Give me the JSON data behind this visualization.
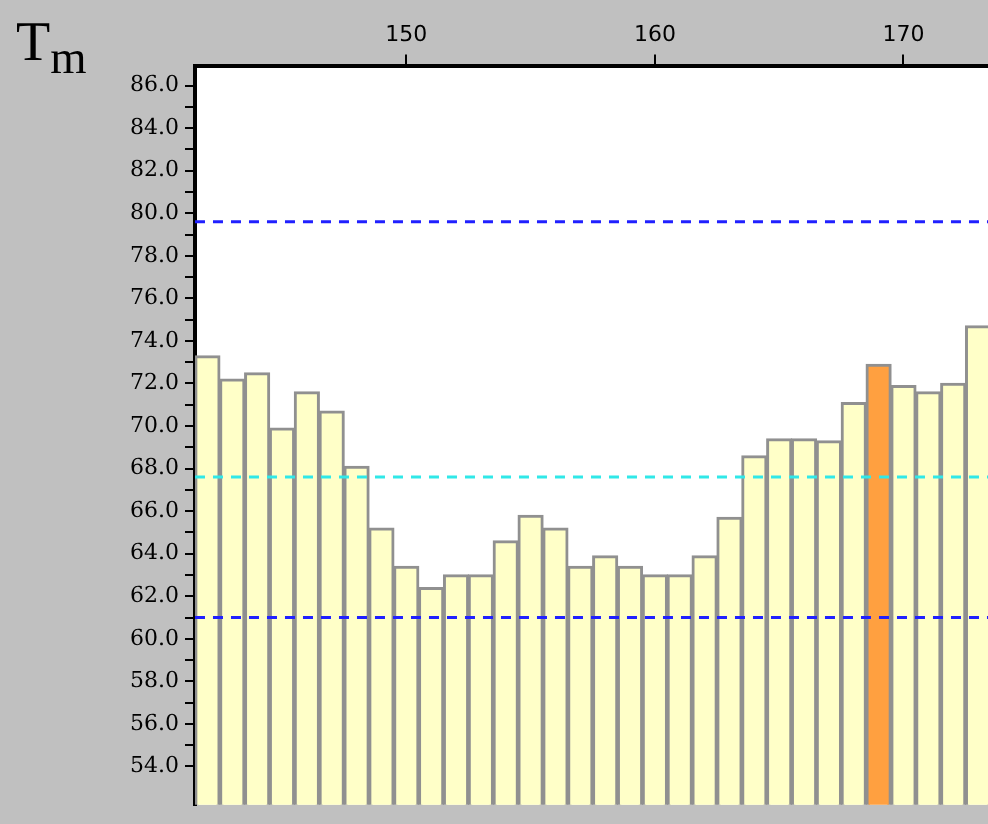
{
  "chart_data": {
    "type": "bar",
    "title": "T$_{m}$",
    "x": [
      142,
      143,
      144,
      145,
      146,
      147,
      148,
      149,
      150,
      151,
      152,
      153,
      154,
      155,
      156,
      157,
      158,
      159,
      160,
      161,
      162,
      163,
      164,
      165,
      166,
      167,
      168,
      169,
      170,
      171,
      172,
      173
    ],
    "values": [
      73.3,
      72.2,
      72.5,
      69.9,
      71.6,
      70.7,
      68.1,
      65.2,
      63.4,
      62.4,
      63.0,
      63.0,
      64.6,
      65.8,
      65.2,
      63.4,
      63.9,
      63.4,
      63.0,
      63.0,
      63.9,
      65.7,
      68.6,
      69.4,
      69.4,
      69.3,
      71.1,
      72.9,
      71.9,
      71.6,
      72.0,
      74.7
    ],
    "colors": [
      "#ffffc8",
      "#ffffc8",
      "#ffffc8",
      "#ffffc8",
      "#ffffc8",
      "#ffffc8",
      "#ffffc8",
      "#ffffc8",
      "#ffffc8",
      "#ffffc8",
      "#ffffc8",
      "#ffffc8",
      "#ffffc8",
      "#ffffc8",
      "#ffffc8",
      "#ffffc8",
      "#ffffc8",
      "#ffffc8",
      "#ffffc8",
      "#ffffc8",
      "#ffffc8",
      "#ffffc8",
      "#ffffc8",
      "#ffffc8",
      "#ffffc8",
      "#ffffc8",
      "#ffffc8",
      "#ffa040",
      "#ffffc8",
      "#ffffc8",
      "#ffffc8",
      "#ffffc8"
    ],
    "xlim": [
      141.5,
      173.4
    ],
    "xticks": [
      150,
      160,
      170
    ],
    "ylim": [
      52.2,
      86.9
    ],
    "yticks": [
      {
        "value": 54,
        "label": "54.0"
      },
      {
        "value": 55,
        "label": null
      },
      {
        "value": 56,
        "label": "56.0"
      },
      {
        "value": 57,
        "label": null
      },
      {
        "value": 58,
        "label": "58.0"
      },
      {
        "value": 59,
        "label": null
      },
      {
        "value": 60,
        "label": "60.0"
      },
      {
        "value": 61,
        "label": null
      },
      {
        "value": 62,
        "label": "62.0"
      },
      {
        "value": 63,
        "label": null
      },
      {
        "value": 64,
        "label": "64.0"
      },
      {
        "value": 65,
        "label": null
      },
      {
        "value": 66,
        "label": "66.0"
      },
      {
        "value": 67,
        "label": null
      },
      {
        "value": 68,
        "label": "68.0"
      },
      {
        "value": 69,
        "label": null
      },
      {
        "value": 70,
        "label": "70.0"
      },
      {
        "value": 71,
        "label": null
      },
      {
        "value": 72,
        "label": "72.0"
      },
      {
        "value": 73,
        "label": null
      },
      {
        "value": 74,
        "label": "74.0"
      },
      {
        "value": 75,
        "label": null
      },
      {
        "value": 76,
        "label": "76.0"
      },
      {
        "value": 77,
        "label": null
      },
      {
        "value": 78,
        "label": "78.0"
      },
      {
        "value": 79,
        "label": null
      },
      {
        "value": 80,
        "label": "80.0"
      },
      {
        "value": 81,
        "label": null
      },
      {
        "value": 82,
        "label": "82.0"
      },
      {
        "value": 83,
        "label": null
      },
      {
        "value": 84,
        "label": "84.0"
      },
      {
        "value": 85,
        "label": null
      },
      {
        "value": 86,
        "label": "86.0"
      }
    ],
    "ref_lines": [
      {
        "axis": "y",
        "value": 79.6,
        "color": "#2020ff",
        "line_style": "dashed"
      },
      {
        "axis": "y",
        "value": 67.6,
        "color": "#30e8e8",
        "line_style": "dashed"
      },
      {
        "axis": "y",
        "value": 61.0,
        "color": "#2020ff",
        "line_style": "dashed"
      }
    ]
  }
}
